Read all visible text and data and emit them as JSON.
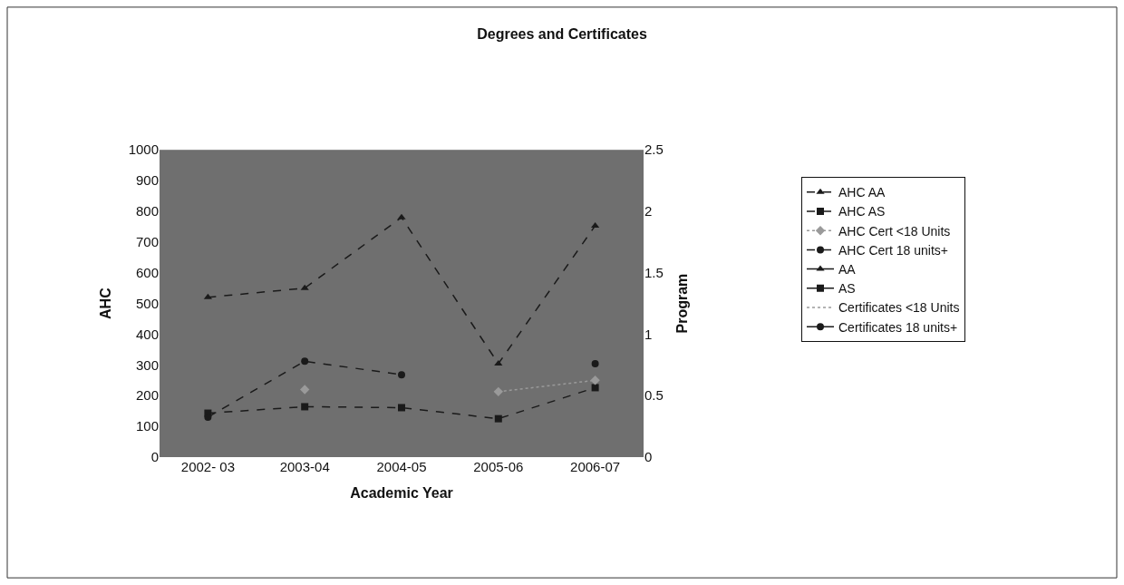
{
  "chart_data": {
    "type": "line",
    "title": "Degrees and Certificates",
    "xlabel": "Academic Year",
    "ylabel": "AHC",
    "y2label": "Program",
    "categories": [
      "2002- 03",
      "2003-04",
      "2004-05",
      "2005-06",
      "2006-07"
    ],
    "series": [
      {
        "name": "AHC AA",
        "color": "#1a1a1a",
        "marker": "triangle",
        "line_style": "dashed",
        "values": [
          520,
          550,
          780,
          304,
          753
        ]
      },
      {
        "name": "AHC AS",
        "color": "#1a1a1a",
        "marker": "square",
        "line_style": "dashed",
        "values": [
          143,
          164,
          161,
          125,
          226
        ]
      },
      {
        "name": "AHC Cert <18 Units",
        "color": "#9a9a9a",
        "marker": "diamond",
        "line_style": "dotted",
        "values": [
          null,
          220,
          null,
          213,
          250
        ]
      },
      {
        "name": "AHC Cert 18 units+",
        "color": "#1a1a1a",
        "marker": "circle",
        "line_style": "dashed",
        "values": [
          130,
          312,
          268,
          null,
          304
        ]
      },
      {
        "name": "AA",
        "color": "#1a1a1a",
        "marker": "triangle",
        "line_style": "solid",
        "axis": "y2",
        "values": [
          null,
          null,
          null,
          null,
          null
        ]
      },
      {
        "name": "AS",
        "color": "#1a1a1a",
        "marker": "square",
        "line_style": "solid",
        "axis": "y2",
        "values": [
          null,
          null,
          null,
          null,
          null
        ]
      },
      {
        "name": "Certificates <18 Units",
        "color": "#9a9a9a",
        "marker": "none",
        "line_style": "dotted",
        "axis": "y2",
        "values": [
          null,
          null,
          null,
          null,
          null
        ]
      },
      {
        "name": "Certificates 18 units+",
        "color": "#1a1a1a",
        "marker": "circle",
        "line_style": "solid",
        "axis": "y2",
        "values": [
          null,
          null,
          null,
          null,
          null
        ]
      }
    ],
    "ylim": [
      0,
      1000
    ],
    "yticks": [
      0,
      100,
      200,
      300,
      400,
      500,
      600,
      700,
      800,
      900,
      1000
    ],
    "y2lim": [
      0,
      2.5
    ],
    "y2ticks": [
      0,
      0.5,
      1,
      1.5,
      2,
      2.5
    ],
    "grid": false,
    "legend": "right"
  }
}
